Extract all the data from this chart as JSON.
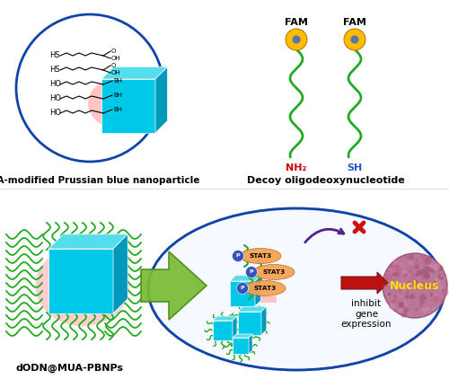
{
  "title_left": "MUA-modified Prussian blue nanoparticle",
  "title_right": "Decoy oligodeoxynucleotide",
  "title_bottom_left": "dODN@MUA-PBNPs",
  "label_nh2": "NH₂",
  "label_sh": "SH",
  "label_fam": "FAM",
  "label_inhibit": "inhibit\ngene\nexpression",
  "label_nucleus": "Nucleus",
  "label_stat3": "STAT3",
  "cube_color": "#00C8E8",
  "cube_top_color": "#55DDEE",
  "cube_side_color": "#0099BB",
  "pink_glow": "#FFB0B0",
  "circle_color": "#1144AA",
  "green_dna_color": "#22AA22",
  "fam_color": "#FFBB00",
  "fam_center_color": "#5577AA",
  "nh2_color": "#CC0000",
  "sh_color": "#2255CC",
  "stat3_color": "#F5A050",
  "green_arrow_color": "#77BB33",
  "green_arrow_edge": "#4A8A1A",
  "red_arrow_color": "#BB1111",
  "purple_arrow_color": "#552288",
  "nucleus_fc": "#BB7799",
  "wavy_color": "#22AA22",
  "background_color": "#FFFFFF",
  "p_circle_color": "#3355BB",
  "cell_fill": "#E8F0FF"
}
